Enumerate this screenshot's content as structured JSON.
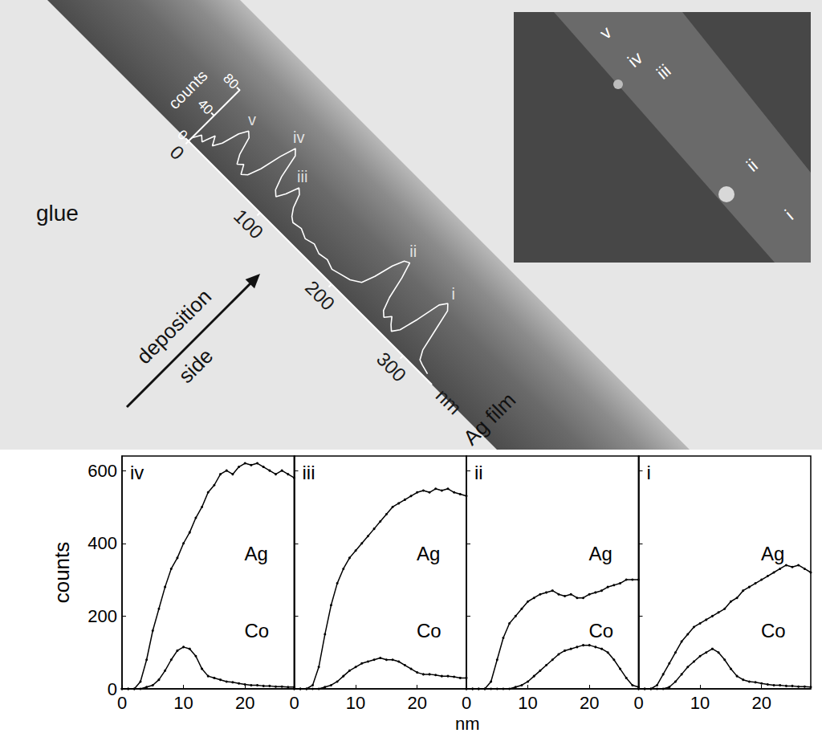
{
  "micrograph": {
    "texts": [
      "glue",
      "Ag film"
    ],
    "arrow_label": [
      "deposition",
      "side"
    ],
    "inset_labels": [
      "v",
      "iv",
      "iii",
      "ii",
      "i"
    ]
  },
  "panel_x_label": "nm",
  "chart_data": [
    {
      "type": "line",
      "x_label": "nm",
      "y_label": "counts",
      "color": "#ffffff",
      "grid": false,
      "x": [
        0,
        5,
        10,
        15,
        20,
        25,
        30,
        35,
        40,
        45,
        50,
        55,
        60,
        65,
        70,
        75,
        80,
        85,
        90,
        95,
        100,
        105,
        110,
        115,
        120,
        125,
        130,
        140,
        150,
        160,
        170,
        180,
        190,
        200,
        210,
        220,
        225,
        230,
        235,
        240,
        245,
        250,
        255,
        260,
        265,
        270,
        275,
        280,
        285,
        290,
        295,
        300,
        305,
        310,
        315,
        320,
        330
      ],
      "values": [
        5,
        15,
        10,
        25,
        15,
        25,
        45,
        55,
        50,
        30,
        20,
        25,
        15,
        20,
        35,
        60,
        78,
        72,
        45,
        30,
        25,
        35,
        50,
        45,
        30,
        22,
        18,
        20,
        15,
        18,
        14,
        16,
        12,
        15,
        18,
        25,
        40,
        62,
        75,
        78,
        60,
        35,
        20,
        15,
        22,
        15,
        10,
        18,
        40,
        68,
        76,
        70,
        45,
        20,
        10,
        8,
        5
      ],
      "xlim": [
        0,
        340
      ],
      "xticks": [
        0,
        100,
        200,
        300
      ],
      "ylim": [
        0,
        80
      ],
      "yticks": [
        0,
        40,
        80
      ],
      "annotations": [
        {
          "text": "v",
          "x": 35,
          "y": 55
        },
        {
          "text": "iv",
          "x": 80,
          "y": 78
        },
        {
          "text": "iii",
          "x": 110,
          "y": 50
        },
        {
          "text": "ii",
          "x": 240,
          "y": 78
        },
        {
          "text": "i",
          "x": 298,
          "y": 76
        }
      ]
    },
    {
      "type": "line",
      "title": "iv",
      "y_label": "counts",
      "grid": false,
      "x": [
        0,
        1,
        2,
        3,
        4,
        5,
        6,
        7,
        8,
        9,
        10,
        11,
        12,
        13,
        14,
        15,
        16,
        17,
        18,
        19,
        20,
        21,
        22,
        23,
        24,
        25,
        26,
        27,
        28
      ],
      "xlim": [
        0,
        28
      ],
      "xticks": [
        0,
        10,
        20
      ],
      "ylim": [
        0,
        640
      ],
      "yticks": [
        0,
        200,
        400,
        600
      ],
      "series": [
        {
          "name": "Ag",
          "color": "#000000",
          "marker": "circle",
          "values": [
            0,
            0,
            0,
            20,
            80,
            160,
            220,
            280,
            330,
            360,
            400,
            430,
            470,
            500,
            540,
            560,
            590,
            600,
            590,
            610,
            620,
            615,
            620,
            610,
            600,
            590,
            600,
            590,
            580
          ]
        },
        {
          "name": "Co",
          "color": "#000000",
          "marker": "circle",
          "values": [
            0,
            0,
            0,
            0,
            5,
            10,
            25,
            50,
            80,
            105,
            115,
            110,
            90,
            55,
            35,
            30,
            25,
            20,
            18,
            15,
            12,
            10,
            10,
            8,
            8,
            6,
            6,
            5,
            5
          ]
        }
      ]
    },
    {
      "type": "line",
      "title": "iii",
      "tick_labels": "x",
      "grid": false,
      "x": [
        0,
        1,
        2,
        3,
        4,
        5,
        6,
        7,
        8,
        9,
        10,
        11,
        12,
        13,
        14,
        15,
        16,
        17,
        18,
        19,
        20,
        21,
        22,
        23,
        24,
        25,
        26,
        27,
        28
      ],
      "xlim": [
        0,
        28
      ],
      "xticks": [
        0,
        10,
        20
      ],
      "ylim": [
        0,
        640
      ],
      "yticks": [
        0,
        200,
        400,
        600
      ],
      "series": [
        {
          "name": "Ag",
          "color": "#000000",
          "marker": "circle",
          "values": [
            0,
            0,
            0,
            10,
            60,
            150,
            230,
            290,
            330,
            360,
            380,
            400,
            420,
            440,
            460,
            480,
            500,
            510,
            520,
            530,
            540,
            545,
            540,
            550,
            545,
            550,
            540,
            535,
            530
          ]
        },
        {
          "name": "Co",
          "color": "#000000",
          "marker": "circle",
          "values": [
            0,
            0,
            0,
            0,
            0,
            5,
            10,
            20,
            35,
            50,
            60,
            70,
            75,
            80,
            85,
            80,
            80,
            75,
            65,
            55,
            45,
            40,
            40,
            38,
            35,
            35,
            33,
            30,
            30
          ]
        }
      ]
    },
    {
      "type": "line",
      "title": "ii",
      "tick_labels": "x",
      "grid": false,
      "x": [
        0,
        1,
        2,
        3,
        4,
        5,
        6,
        7,
        8,
        9,
        10,
        11,
        12,
        13,
        14,
        15,
        16,
        17,
        18,
        19,
        20,
        21,
        22,
        23,
        24,
        25,
        26,
        27,
        28
      ],
      "xlim": [
        0,
        28
      ],
      "xticks": [
        0,
        10,
        20
      ],
      "ylim": [
        0,
        640
      ],
      "yticks": [
        0,
        200,
        400,
        600
      ],
      "series": [
        {
          "name": "Ag",
          "color": "#000000",
          "marker": "circle",
          "values": [
            0,
            0,
            0,
            0,
            20,
            80,
            140,
            180,
            200,
            220,
            240,
            250,
            260,
            265,
            270,
            260,
            255,
            260,
            250,
            250,
            260,
            265,
            270,
            280,
            285,
            290,
            300,
            300,
            300
          ]
        },
        {
          "name": "Co",
          "color": "#000000",
          "marker": "circle",
          "values": [
            0,
            0,
            0,
            0,
            0,
            0,
            0,
            0,
            5,
            10,
            20,
            35,
            50,
            65,
            80,
            95,
            105,
            110,
            115,
            120,
            120,
            115,
            110,
            100,
            80,
            55,
            30,
            10,
            5
          ]
        }
      ]
    },
    {
      "type": "line",
      "title": "i",
      "tick_labels": "x",
      "grid": false,
      "x": [
        0,
        1,
        2,
        3,
        4,
        5,
        6,
        7,
        8,
        9,
        10,
        11,
        12,
        13,
        14,
        15,
        16,
        17,
        18,
        19,
        20,
        21,
        22,
        23,
        24,
        25,
        26,
        27,
        28
      ],
      "xlim": [
        0,
        28
      ],
      "xticks": [
        0,
        10,
        20
      ],
      "ylim": [
        0,
        640
      ],
      "yticks": [
        0,
        200,
        400,
        600
      ],
      "series": [
        {
          "name": "Ag",
          "color": "#000000",
          "marker": "circle",
          "values": [
            0,
            0,
            0,
            10,
            40,
            70,
            100,
            130,
            150,
            170,
            180,
            190,
            200,
            210,
            220,
            240,
            250,
            270,
            280,
            290,
            300,
            310,
            320,
            330,
            340,
            335,
            340,
            330,
            320
          ]
        },
        {
          "name": "Co",
          "color": "#000000",
          "marker": "circle",
          "values": [
            0,
            0,
            0,
            0,
            0,
            5,
            20,
            40,
            60,
            75,
            90,
            100,
            110,
            100,
            80,
            55,
            35,
            25,
            20,
            18,
            15,
            12,
            10,
            10,
            8,
            8,
            6,
            6,
            5
          ]
        }
      ]
    }
  ]
}
